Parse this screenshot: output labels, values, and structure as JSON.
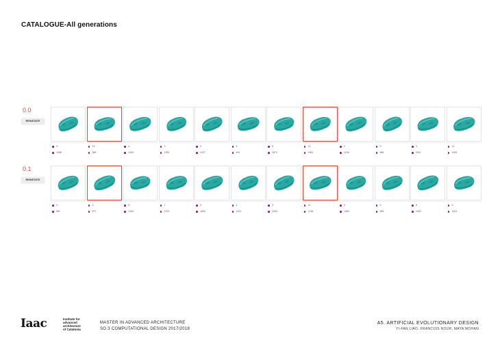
{
  "page": {
    "title": "CATALOGUE-All generations"
  },
  "colors": {
    "accent": "#e0453a",
    "shape": "#2aa9a3",
    "dot": "#9a1a6e"
  },
  "rows": [
    {
      "label": "0.0",
      "button": "REINSTATE",
      "items": [
        {
          "a": "3",
          "b": "1058",
          "selected": false
        },
        {
          "a": "12",
          "b": "389",
          "selected": true
        },
        {
          "a": "4",
          "b": "1405",
          "selected": false
        },
        {
          "a": "3",
          "b": "1290",
          "selected": false
        },
        {
          "a": "3",
          "b": "1227",
          "selected": false
        },
        {
          "a": "4",
          "b": "491",
          "selected": false
        },
        {
          "a": "5",
          "b": "1573",
          "selected": false
        },
        {
          "a": "12",
          "b": "1081",
          "selected": true
        },
        {
          "a": "2",
          "b": "1196",
          "selected": false
        },
        {
          "a": "3",
          "b": "585",
          "selected": false
        },
        {
          "a": "3",
          "b": "2011",
          "selected": false
        },
        {
          "a": "12",
          "b": "1105",
          "selected": false
        }
      ]
    },
    {
      "label": "0.1",
      "button": "REINSTATE",
      "items": [
        {
          "a": "3",
          "b": "561",
          "selected": false
        },
        {
          "a": "3",
          "b": "577",
          "selected": true
        },
        {
          "a": "3",
          "b": "1449",
          "selected": false
        },
        {
          "a": "7",
          "b": "1370",
          "selected": false
        },
        {
          "a": "3",
          "b": "1600",
          "selected": false
        },
        {
          "a": "4",
          "b": "1201",
          "selected": false
        },
        {
          "a": "3",
          "b": "1003",
          "selected": false
        },
        {
          "a": "12",
          "b": "1736",
          "selected": true
        },
        {
          "a": "3",
          "b": "1063",
          "selected": false
        },
        {
          "a": "3",
          "b": "653",
          "selected": false
        },
        {
          "a": "8",
          "b": "1920",
          "selected": false
        },
        {
          "a": "3",
          "b": "1021",
          "selected": false
        }
      ]
    }
  ],
  "footer": {
    "logo_text": "Iaac",
    "institute": [
      "Institute for",
      "advanced",
      "architecture",
      "of Catalonia"
    ],
    "program": "MASTER IN ADVANCED ARCHITECTURE",
    "course": "SO.3 COMPUTATIONAL DESIGN 2017/2018",
    "project": "A5. ARTIFICIAL EVOLUTIONARY DESIGN",
    "authors": "YI-FAN LIAO, FRANCOIS NOUR, MAYA MOHAN"
  }
}
